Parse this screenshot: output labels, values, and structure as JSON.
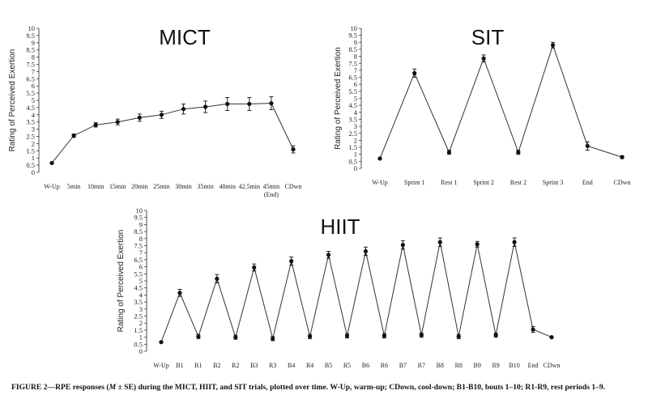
{
  "chart_data": [
    {
      "type": "line",
      "title": "MICT",
      "ylabel": "Rating of Perceived Exertion",
      "ylim": [
        0,
        10
      ],
      "yticks": [
        "0",
        "0.5",
        "1",
        "1.5",
        "2",
        "2.5",
        "3",
        "3.5",
        "4",
        "4.5",
        "5",
        "5.5",
        "6",
        "6.5",
        "7",
        "7.5",
        "8",
        "8.5",
        "9",
        "9.5",
        "10"
      ],
      "categories": [
        "W-Up",
        "5min",
        "10min",
        "15min",
        "20min",
        "25min",
        "30min",
        "35min",
        "40min",
        "42.5min",
        "45min\n(End)",
        "CDwn"
      ],
      "values": [
        0.65,
        2.55,
        3.3,
        3.5,
        3.8,
        4.0,
        4.4,
        4.55,
        4.75,
        4.75,
        4.8,
        1.6
      ],
      "errors": [
        0.05,
        0.12,
        0.15,
        0.2,
        0.25,
        0.25,
        0.35,
        0.4,
        0.45,
        0.45,
        0.45,
        0.25
      ],
      "grid": false
    },
    {
      "type": "line",
      "title": "SIT",
      "ylabel": "Rating of Perceived Exertion",
      "ylim": [
        0,
        10
      ],
      "yticks": [
        "0",
        "0.5",
        "1",
        "1.5",
        "2",
        "2.5",
        "3",
        "3.5",
        "4",
        "4.5",
        "5",
        "5.5",
        "6",
        "6.5",
        "7",
        "7.5",
        "8",
        "8.5",
        "9",
        "9.5",
        "10"
      ],
      "categories": [
        "W-Up",
        "Sprint 1",
        "Rest 1",
        "Sprint 2",
        "Rest 2",
        "Sprint 3",
        "End",
        "CDwn"
      ],
      "values": [
        0.7,
        6.8,
        1.15,
        7.85,
        1.15,
        8.8,
        1.6,
        0.8
      ],
      "errors": [
        0.05,
        0.3,
        0.15,
        0.25,
        0.15,
        0.2,
        0.3,
        0.1
      ],
      "grid": false
    },
    {
      "type": "line",
      "title": "HIIT",
      "ylabel": "Rating of Perceived Exertion",
      "ylim": [
        0,
        10
      ],
      "yticks": [
        "0",
        "0.5",
        "1",
        "1.5",
        "2",
        "2.5",
        "3",
        "3.5",
        "4",
        "4.5",
        "5",
        "5.5",
        "6",
        "6.5",
        "7",
        "7.5",
        "8",
        "8.5",
        "9",
        "9.5",
        "10"
      ],
      "categories": [
        "W-Up",
        "B1",
        "R1",
        "B2",
        "R2",
        "B3",
        "R3",
        "B4",
        "R4",
        "B5",
        "R5",
        "B6",
        "R6",
        "B7",
        "R7",
        "B8",
        "R8",
        "B9",
        "R9",
        "B10",
        "End",
        "CDwn"
      ],
      "values": [
        0.65,
        4.15,
        1.05,
        5.15,
        1.0,
        5.95,
        0.9,
        6.4,
        1.05,
        6.85,
        1.1,
        7.1,
        1.1,
        7.55,
        1.15,
        7.75,
        1.05,
        7.6,
        1.15,
        7.75,
        1.55,
        1.0
      ],
      "errors": [
        0.05,
        0.25,
        0.15,
        0.3,
        0.15,
        0.25,
        0.15,
        0.3,
        0.15,
        0.25,
        0.15,
        0.3,
        0.15,
        0.3,
        0.15,
        0.3,
        0.15,
        0.2,
        0.15,
        0.3,
        0.2,
        0.05
      ],
      "grid": false
    }
  ],
  "caption": {
    "label": "FIGURE 2—",
    "pre": "RPE responses (",
    "m": "M",
    "post": " ± SE) during the MICT, HIIT, and SIT trials, plotted over time. W-Up, warm-up; CDown, cool-down; B1-B10, bouts 1–10; R1-R9, rest periods 1–9."
  }
}
